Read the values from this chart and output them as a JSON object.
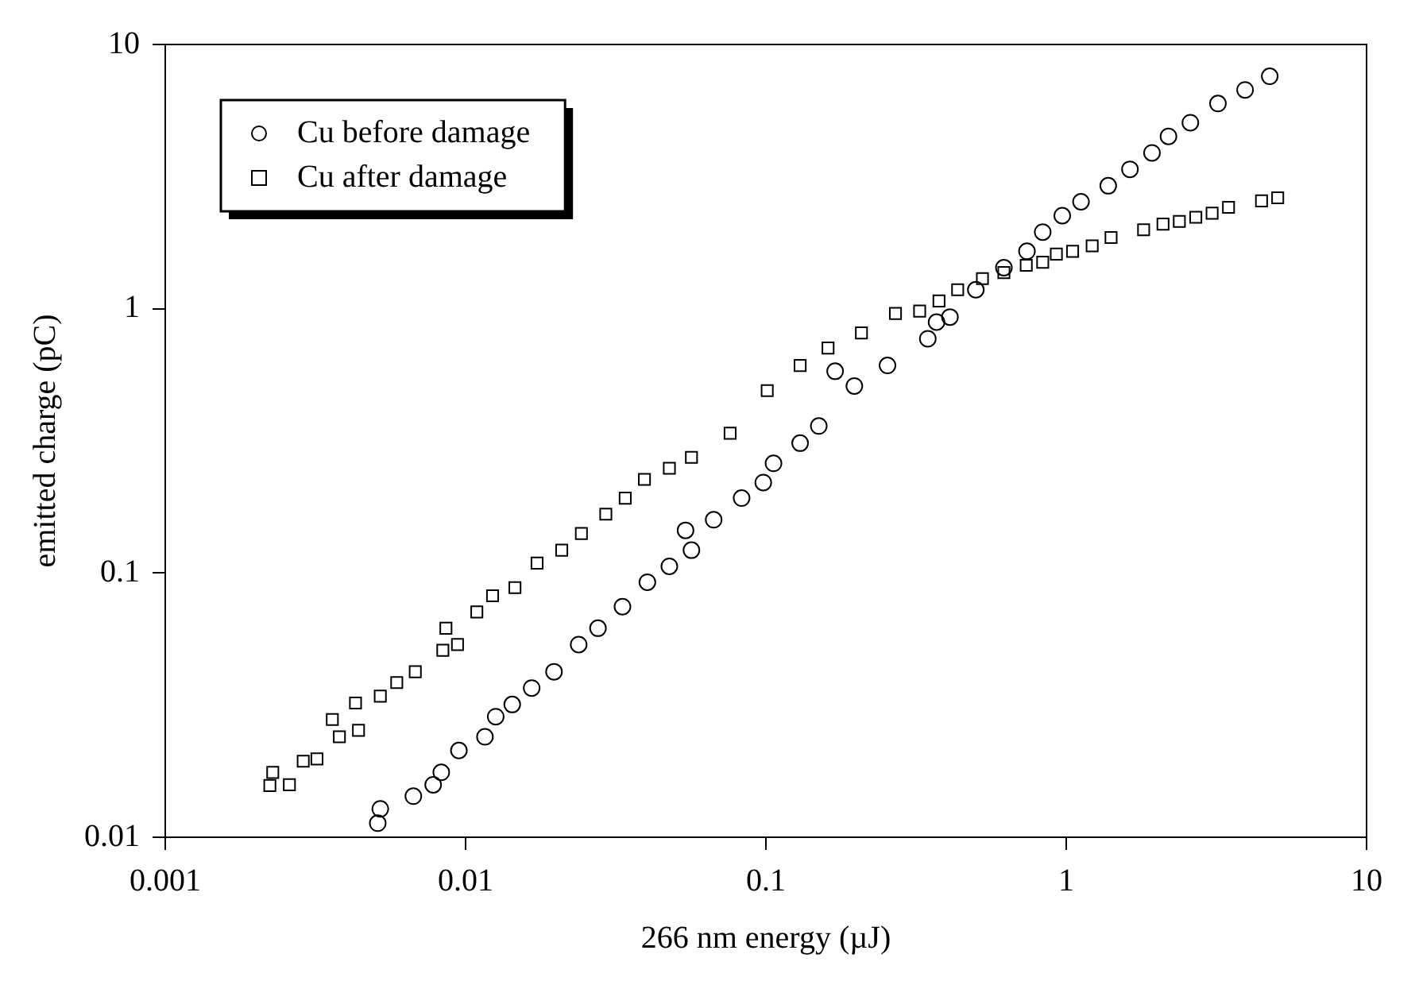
{
  "chart_data": {
    "type": "scatter",
    "xlabel": "266 nm energy (µJ)",
    "ylabel": "emitted charge (pC)",
    "log": "xy",
    "grid": false,
    "legend": "top left",
    "xlim": [
      0.001,
      10
    ],
    "xticks": [
      0.001,
      0.01,
      0.1,
      1,
      10
    ],
    "ylim": [
      0.01,
      10
    ],
    "yticks": [
      0.01,
      0.1,
      1,
      10
    ],
    "series": [
      {
        "name": "Cu before damage",
        "color": "#000000",
        "marker": "circle",
        "x": [
          0.0051,
          0.0052,
          0.0067,
          0.0078,
          0.0083,
          0.0095,
          0.0116,
          0.0126,
          0.0143,
          0.0166,
          0.0197,
          0.0238,
          0.0276,
          0.0333,
          0.0403,
          0.0477,
          0.054,
          0.0565,
          0.067,
          0.083,
          0.098,
          0.106,
          0.13,
          0.15,
          0.17,
          0.197,
          0.254,
          0.346,
          0.37,
          0.41,
          0.5,
          0.62,
          0.74,
          0.835,
          0.97,
          1.12,
          1.38,
          1.63,
          1.93,
          2.19,
          2.59,
          3.2,
          3.94,
          4.76
        ],
        "values": [
          0.0113,
          0.0128,
          0.0143,
          0.0158,
          0.0176,
          0.0213,
          0.024,
          0.0286,
          0.0318,
          0.0367,
          0.0423,
          0.0536,
          0.0618,
          0.0746,
          0.0923,
          0.106,
          0.145,
          0.122,
          0.159,
          0.192,
          0.22,
          0.26,
          0.31,
          0.36,
          0.58,
          0.51,
          0.61,
          0.77,
          0.89,
          0.93,
          1.18,
          1.43,
          1.65,
          1.95,
          2.25,
          2.54,
          2.92,
          3.37,
          3.89,
          4.49,
          5.06,
          5.98,
          6.73,
          7.58
        ]
      },
      {
        "name": "Cu after damage",
        "color": "#000000",
        "marker": "square",
        "x": [
          0.00223,
          0.00228,
          0.00259,
          0.00288,
          0.0032,
          0.0036,
          0.0038,
          0.0043,
          0.0044,
          0.0052,
          0.0059,
          0.0068,
          0.0084,
          0.0086,
          0.0094,
          0.0109,
          0.0123,
          0.0146,
          0.0173,
          0.0209,
          0.0243,
          0.0293,
          0.034,
          0.0394,
          0.0477,
          0.0565,
          0.076,
          0.101,
          0.13,
          0.161,
          0.208,
          0.27,
          0.325,
          0.377,
          0.435,
          0.526,
          0.62,
          0.736,
          0.835,
          0.927,
          1.05,
          1.22,
          1.41,
          1.81,
          2.1,
          2.38,
          2.7,
          3.06,
          3.47,
          4.47,
          5.06
        ],
        "values": [
          0.0157,
          0.0176,
          0.0158,
          0.0194,
          0.0198,
          0.0279,
          0.024,
          0.0322,
          0.0254,
          0.0342,
          0.0385,
          0.0423,
          0.051,
          0.0618,
          0.0536,
          0.0712,
          0.082,
          0.088,
          0.109,
          0.122,
          0.141,
          0.167,
          0.192,
          0.226,
          0.249,
          0.274,
          0.338,
          0.49,
          0.61,
          0.71,
          0.81,
          0.96,
          0.98,
          1.07,
          1.18,
          1.3,
          1.37,
          1.46,
          1.5,
          1.61,
          1.65,
          1.73,
          1.86,
          1.99,
          2.09,
          2.14,
          2.22,
          2.3,
          2.42,
          2.56,
          2.63
        ]
      }
    ]
  }
}
